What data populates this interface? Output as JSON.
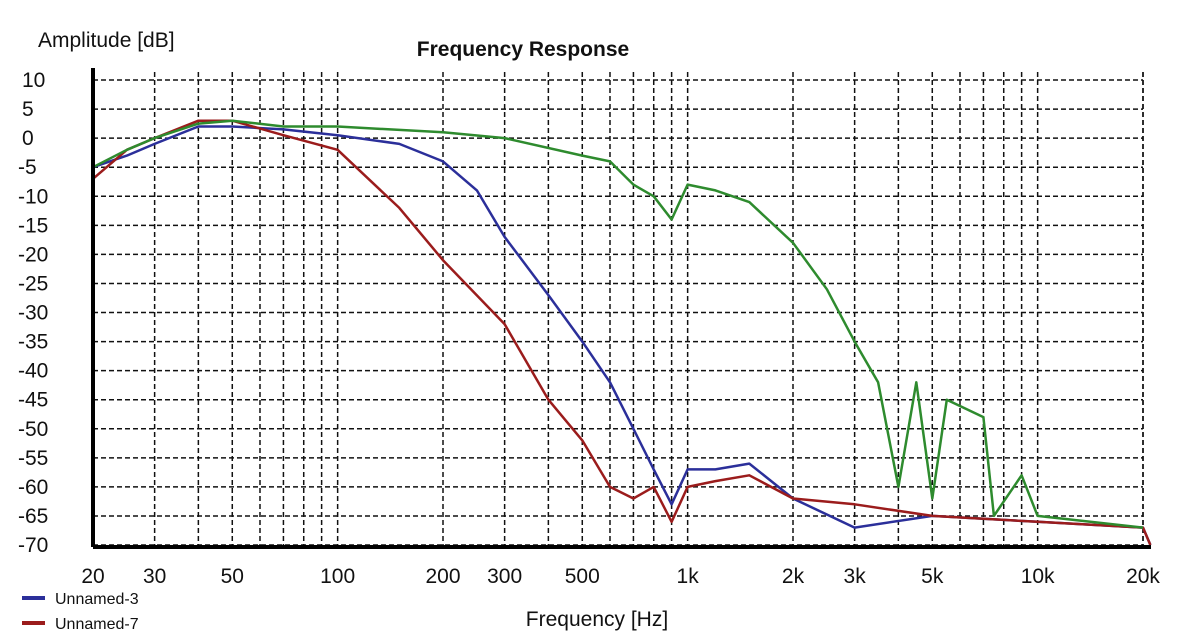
{
  "chart_data": {
    "type": "line",
    "title": "Frequency Response",
    "xlabel": "Frequency [Hz]",
    "ylabel": "Amplitude [dB]",
    "xscale": "log",
    "xlim": [
      20,
      20000
    ],
    "ylim": [
      -70,
      10
    ],
    "grid": true,
    "legend_placement": "bottom-left",
    "x_ticks": [
      {
        "v": 20,
        "t": "20"
      },
      {
        "v": 30,
        "t": "30"
      },
      {
        "v": 50,
        "t": "50"
      },
      {
        "v": 100,
        "t": "100"
      },
      {
        "v": 200,
        "t": "200"
      },
      {
        "v": 300,
        "t": "300"
      },
      {
        "v": 500,
        "t": "500"
      },
      {
        "v": 1000,
        "t": "1k"
      },
      {
        "v": 2000,
        "t": "2k"
      },
      {
        "v": 3000,
        "t": "3k"
      },
      {
        "v": 5000,
        "t": "5k"
      },
      {
        "v": 10000,
        "t": "10k"
      },
      {
        "v": 20000,
        "t": "20k"
      }
    ],
    "y_ticks": [
      10,
      5,
      0,
      -5,
      -10,
      -15,
      -20,
      -25,
      -30,
      -35,
      -40,
      -45,
      -50,
      -55,
      -60,
      -65,
      -70
    ],
    "series": [
      {
        "name": "Unnamed-3",
        "color": "#2b2f9a",
        "x": [
          20,
          25,
          30,
          40,
          50,
          70,
          100,
          150,
          200,
          250,
          300,
          400,
          500,
          600,
          700,
          800,
          900,
          1000,
          1200,
          1500,
          2000,
          3000,
          5000,
          10000,
          20000,
          21000
        ],
        "y": [
          -5,
          -3,
          -1,
          2,
          2,
          1.5,
          0.5,
          -1,
          -4,
          -9,
          -17,
          -27,
          -35,
          -42,
          -50,
          -57,
          -63,
          -57,
          -57,
          -56,
          -62,
          -67,
          -65,
          -66,
          -67,
          -70
        ]
      },
      {
        "name": "Unnamed-7",
        "color": "#9b1c1c",
        "x": [
          20,
          25,
          30,
          40,
          50,
          70,
          100,
          150,
          200,
          300,
          400,
          500,
          600,
          700,
          800,
          900,
          1000,
          1200,
          1500,
          2000,
          3000,
          5000,
          10000,
          20000,
          21000
        ],
        "y": [
          -7,
          -2,
          0,
          3,
          3,
          0.5,
          -2,
          -12,
          -21,
          -32,
          -45,
          -52,
          -60,
          -62,
          -60,
          -66,
          -60,
          -59,
          -58,
          -62,
          -63,
          -65,
          -66,
          -67,
          -70
        ]
      },
      {
        "name": "",
        "color": "#2e8b2e",
        "x": [
          20,
          25,
          30,
          40,
          50,
          70,
          100,
          200,
          300,
          500,
          600,
          700,
          800,
          900,
          1000,
          1200,
          1500,
          2000,
          2500,
          3000,
          3500,
          4000,
          4500,
          5000,
          5500,
          7000,
          7500,
          9000,
          10000,
          20000
        ],
        "y": [
          -5,
          -2,
          0,
          2.5,
          3,
          2,
          2,
          1,
          0,
          -3,
          -4,
          -8,
          -10,
          -14,
          -8,
          -9,
          -11,
          -18,
          -26,
          -35,
          -42,
          -60,
          -42,
          -62,
          -45,
          -48,
          -65,
          -58,
          -65,
          -67
        ]
      }
    ]
  }
}
